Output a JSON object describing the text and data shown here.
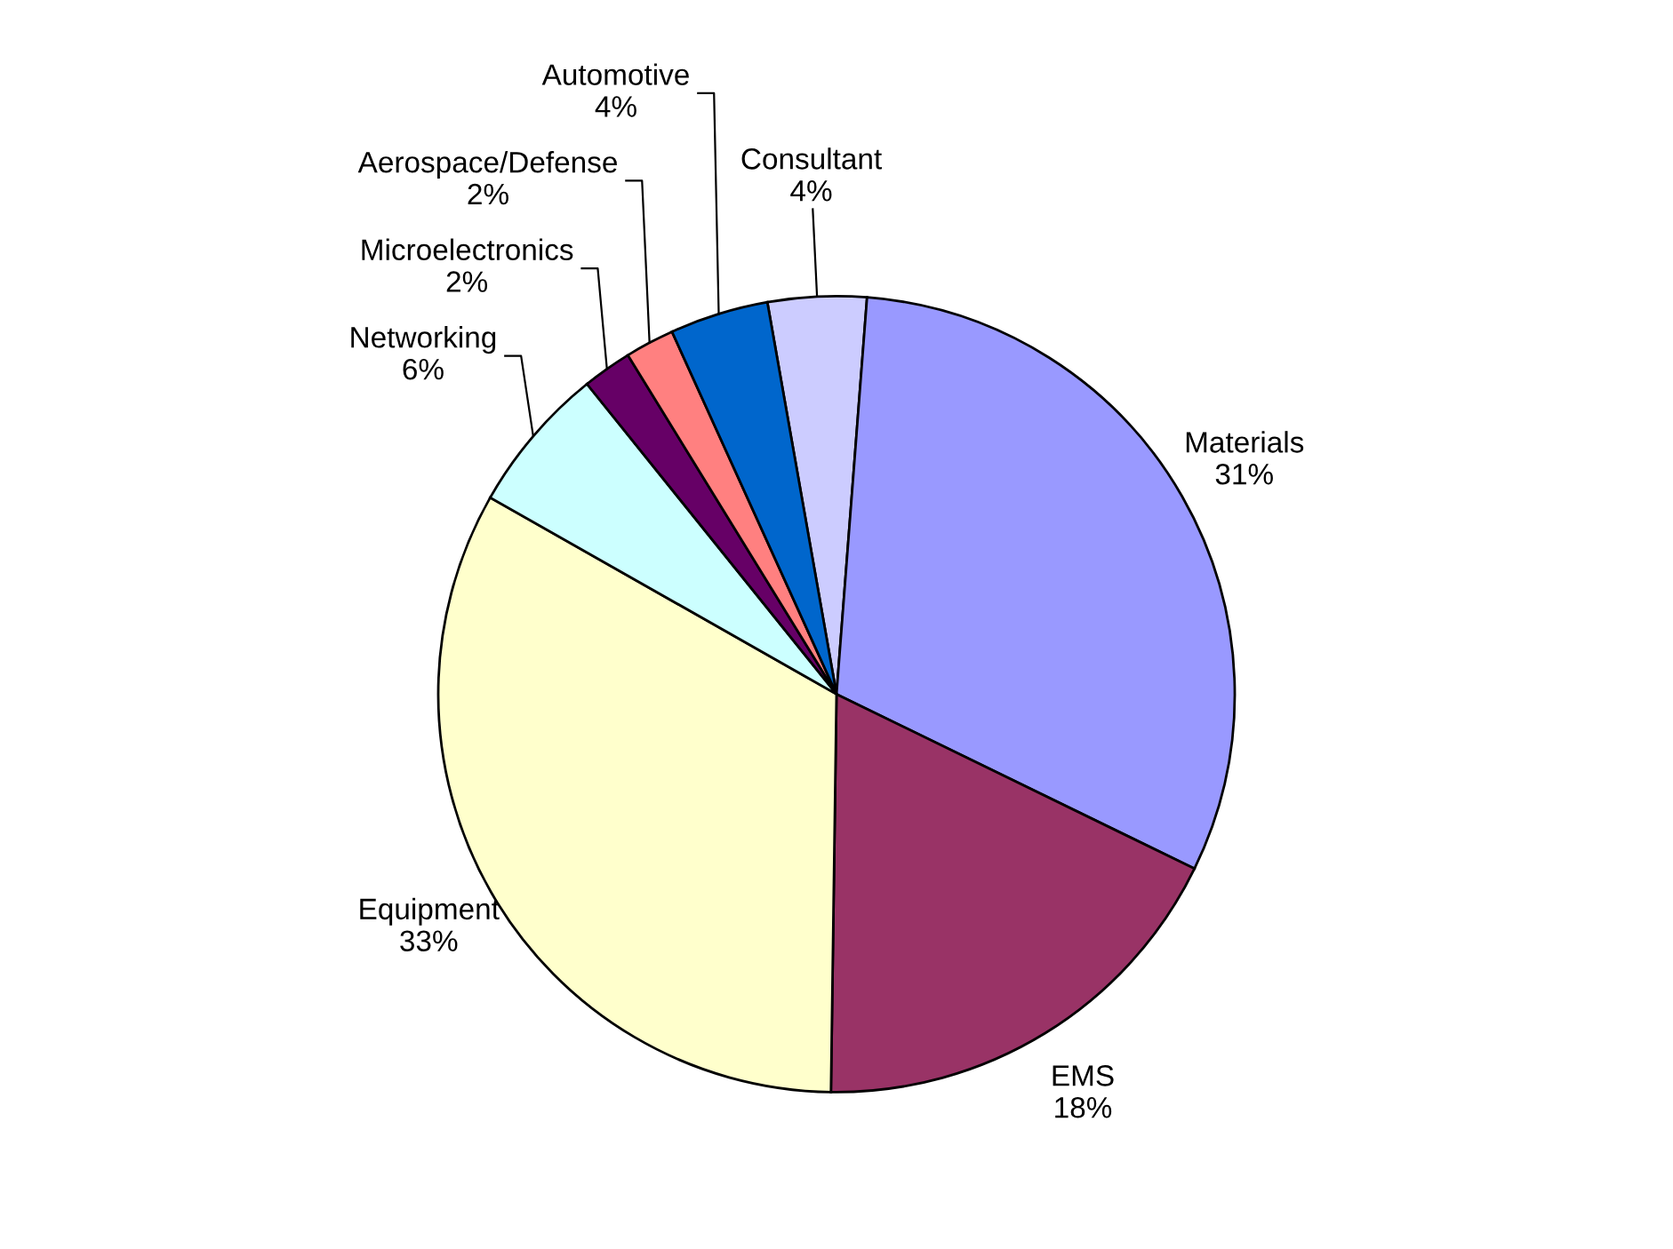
{
  "chart_data": {
    "type": "pie",
    "categories": [
      "Consultant",
      "Materials",
      "EMS",
      "Equipment",
      "Networking",
      "Microelectronics",
      "Aerospace/Defense",
      "Automotive"
    ],
    "values": [
      4,
      31,
      18,
      33,
      6,
      2,
      2,
      4
    ],
    "colors": [
      "#ccccff",
      "#9999ff",
      "#993366",
      "#ffffcc",
      "#ccffff",
      "#660066",
      "#ff8080",
      "#0066cc"
    ],
    "value_labels": [
      "4%",
      "31%",
      "18%",
      "33%",
      "6%",
      "2%",
      "2%",
      "4%"
    ]
  }
}
